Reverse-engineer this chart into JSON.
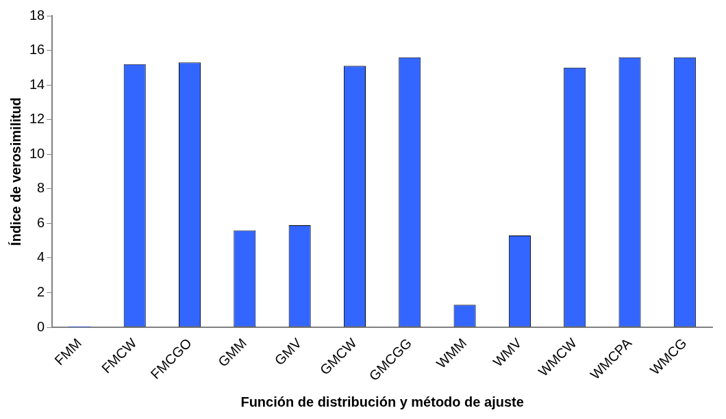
{
  "chart_data": {
    "type": "bar",
    "xlabel": "Función de distribución y método de ajuste",
    "ylabel": "Índice de verosimilitud",
    "categories": [
      "FMM",
      "FMCW",
      "FMCGO",
      "GMM",
      "GMV",
      "GMCW",
      "GMCGG",
      "WMM",
      "WMV",
      "WMCW",
      "WMCPA",
      "WMCG"
    ],
    "values": [
      0.05,
      15.2,
      15.3,
      5.6,
      5.9,
      15.1,
      15.6,
      1.3,
      5.3,
      15.0,
      15.6,
      15.6
    ],
    "color": "#3366ff",
    "ylim": [
      0,
      18
    ],
    "yticks": [
      0,
      2,
      4,
      6,
      8,
      10,
      12,
      14,
      16,
      18
    ],
    "grid": false,
    "legend": false
  }
}
